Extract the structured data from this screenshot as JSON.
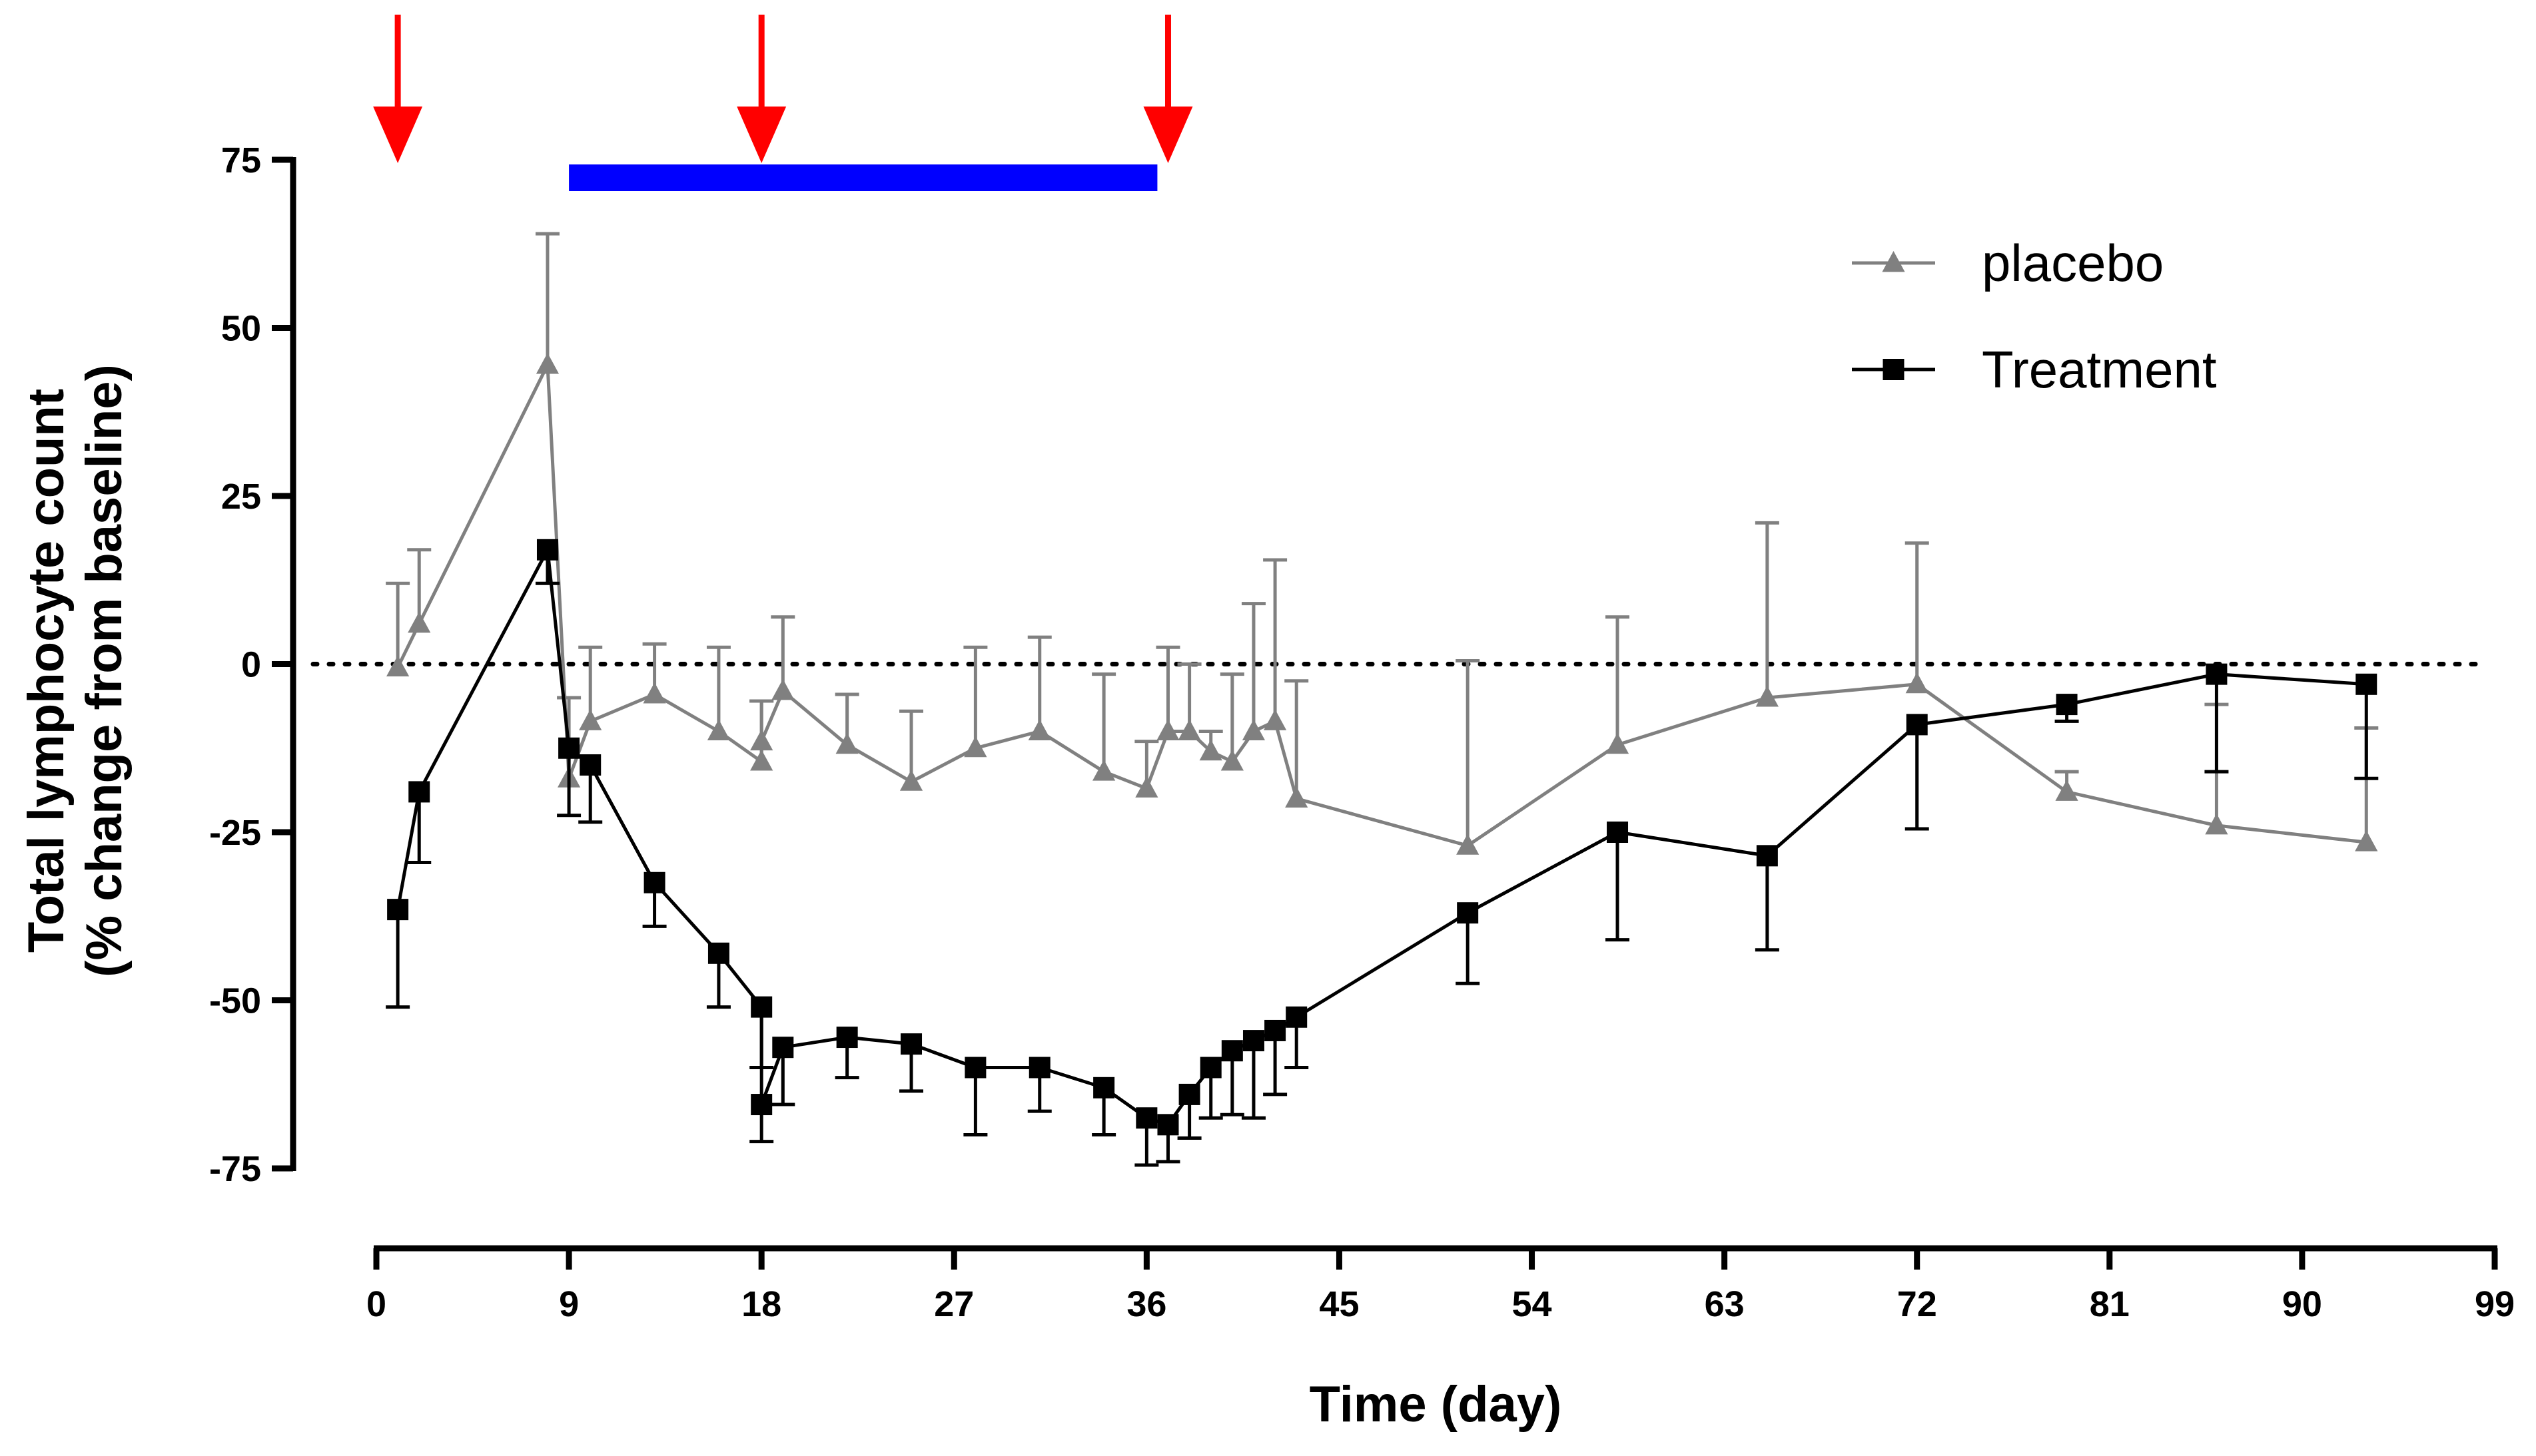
{
  "chart_data": {
    "type": "line",
    "title": "",
    "xlabel": "Time (day)",
    "ylabel_line1": "Total lymphocyte count",
    "ylabel_line2": "(% change from baseline)",
    "xlim": [
      0,
      99
    ],
    "ylim": [
      -75,
      75
    ],
    "xticks": [
      0,
      9,
      18,
      27,
      36,
      45,
      54,
      63,
      72,
      81,
      90,
      99
    ],
    "yticks": [
      75,
      50,
      25,
      0,
      -25,
      -50,
      -75
    ],
    "xtick_labels": [
      "0",
      "9",
      "18",
      "27",
      "36",
      "45",
      "54",
      "63",
      "72",
      "81",
      "90",
      "99"
    ],
    "ytick_labels": [
      "75",
      "50",
      "25",
      "0",
      "-25",
      "-50",
      "-75"
    ],
    "reference_line": {
      "y": 0,
      "style": "dotted"
    },
    "dosing_arrows_days": [
      1,
      18,
      37
    ],
    "treatment_period": {
      "start": 9,
      "end": 36.5
    },
    "legend": {
      "position": "top-right",
      "entries": [
        "placebo",
        "Treatment"
      ]
    },
    "colors": {
      "placebo": "#808080",
      "treatment": "#000000",
      "arrow": "#ff0000",
      "period_bar": "#0000ff"
    },
    "series": [
      {
        "name": "placebo",
        "marker": "triangle",
        "error_direction": "up",
        "x": [
          1,
          2,
          8,
          9,
          10,
          13,
          16,
          18,
          18,
          19,
          22,
          25,
          28,
          31,
          34,
          36,
          37,
          38,
          39,
          40,
          41,
          42,
          43,
          51,
          58,
          65,
          72,
          79,
          86,
          93
        ],
        "y": [
          -0.5,
          6,
          44.5,
          -17,
          -8.5,
          -4.5,
          -10,
          -14.5,
          -11.5,
          -4,
          -12,
          -17.5,
          -12.5,
          -10,
          -16,
          -18.5,
          -10,
          -10,
          -13,
          -14.5,
          -10,
          -8.5,
          -20,
          -27,
          -12,
          -5,
          -3,
          -19,
          -24,
          -26.5
        ],
        "error": [
          12.5,
          11,
          19.5,
          12,
          11,
          7.5,
          12.5,
          9,
          6,
          11,
          7.5,
          10.5,
          15,
          14,
          14.5,
          7,
          12.5,
          10,
          3,
          13,
          19,
          24,
          17.5,
          27.5,
          19,
          26,
          21,
          3,
          18,
          17
        ]
      },
      {
        "name": "Treatment",
        "marker": "square",
        "error_direction": "down",
        "x": [
          1,
          2,
          8,
          9,
          10,
          13,
          16,
          18,
          18,
          19,
          22,
          25,
          28,
          31,
          34,
          36,
          37,
          38,
          39,
          40,
          41,
          42,
          43,
          51,
          58,
          65,
          72,
          79,
          86,
          93
        ],
        "y": [
          -36.5,
          -19,
          17,
          -12.5,
          -15,
          -32.5,
          -43,
          -51,
          -65.5,
          -57,
          -55.5,
          -56.5,
          -60,
          -60,
          -63,
          -67.5,
          -68.5,
          -64,
          -60,
          -57.5,
          -56,
          -54.5,
          -52.5,
          -37,
          -25,
          -28.5,
          -9,
          -6,
          -1.5,
          -3
        ],
        "error": [
          14.5,
          10.5,
          5,
          10,
          8.5,
          6.5,
          8,
          9,
          5.5,
          8.5,
          6,
          7,
          10,
          6.5,
          7,
          7,
          5.5,
          6.5,
          7.5,
          9.5,
          11.5,
          9.5,
          7.5,
          10.5,
          16,
          14,
          15.5,
          2.5,
          14.5,
          14
        ]
      }
    ]
  }
}
